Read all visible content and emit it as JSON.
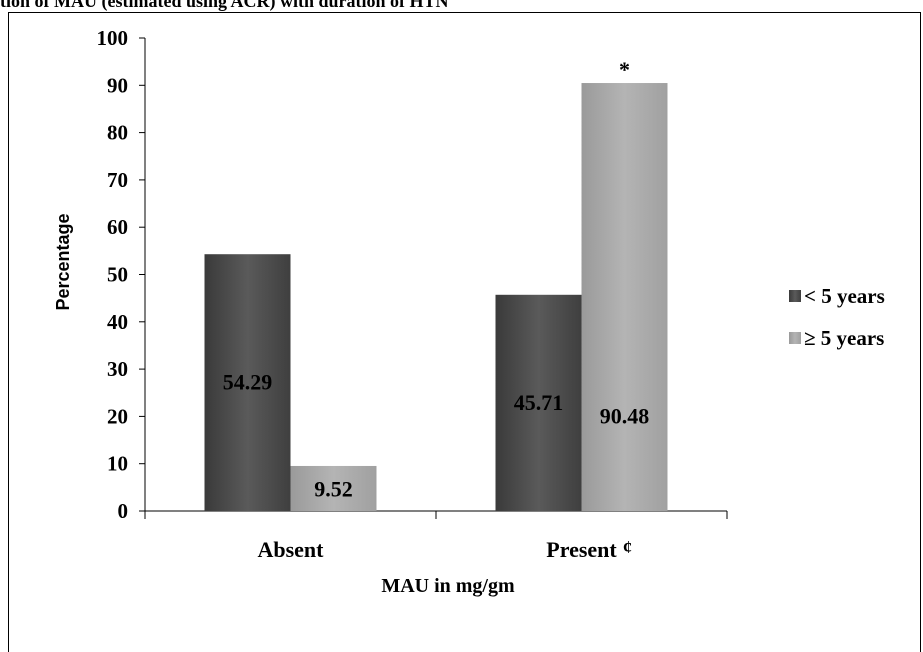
{
  "caption": "tion of MAU (estimated using ACR) with duration of HTN",
  "chart_data": {
    "type": "bar",
    "categories": [
      "Absent",
      "Present"
    ],
    "series": [
      {
        "name": "< 5 years",
        "values": [
          54.29,
          45.71
        ],
        "color": "#4d4d4d"
      },
      {
        "name": "≥ 5 years",
        "values": [
          9.52,
          90.48
        ],
        "color": "#a6a6a6"
      }
    ],
    "data_labels": [
      [
        "54.29",
        "45.71"
      ],
      [
        "9.52",
        "90.48"
      ]
    ],
    "xlabel": "MAU in mg/gm",
    "ylabel": "Percentage",
    "ylim": [
      0,
      100
    ],
    "yticks": [
      0,
      10,
      20,
      30,
      40,
      50,
      60,
      70,
      80,
      90,
      100
    ],
    "grid": false,
    "legend": "right",
    "annotations": [
      {
        "text": "*",
        "series": 1,
        "category": 1
      },
      {
        "text": "¢",
        "category": 1
      }
    ]
  }
}
